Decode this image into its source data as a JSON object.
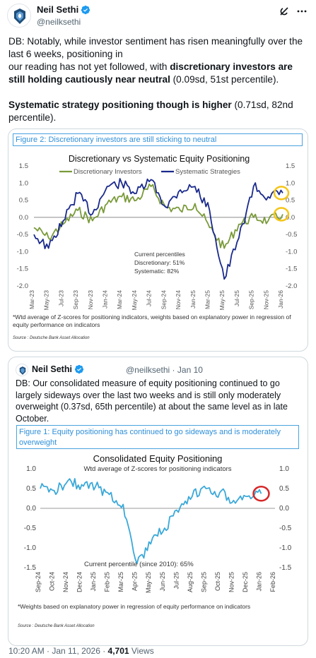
{
  "author": {
    "name": "Neil Sethi",
    "handle": "@neilksethi"
  },
  "tweet": {
    "line1": "DB: Notably, while investor sentiment has risen meaningfully over the last 6 weeks, positioning in",
    "line2_prefix": "our reading has not yet followed, with ",
    "line2_bold": "discretionary investors are still holding cautiously near neutral",
    "line2_suffix": " (0.09sd, 51st percentile).",
    "line3_bold": "Systematic strategy positioning though is higher",
    "line3_suffix": " (0.71sd, 82nd percentile)."
  },
  "colors": {
    "discretionary": "#7a9a3a",
    "systematic": "#1a2a8c",
    "consolidated": "#3aa8d8",
    "highlight_yellow": "#f5c518",
    "highlight_red": "#d62728",
    "caption_blue": "#2f8fd8"
  },
  "figure2": {
    "caption": "Figure 2: Discretionary investors are still sticking to neutral",
    "source": "Source : Deutsche Bank Asset Allocation",
    "footnote": "*Wtd average of Z-scores for positioning indicators, weights based on explanatory power in regression of equity performance on indicators",
    "annotation_title": "Current percentiles",
    "annotation_disc": "Discretionary: 51%",
    "annotation_sys": "Systematic: 82%"
  },
  "quote": {
    "author": "Neil Sethi",
    "handle": "@neilksethi",
    "date": "Jan 10",
    "text": "DB: Our consolidated measure of equity positioning continued to go largely sideways over the last two weeks and is still only moderately overweight (0.37sd, 65th percentile) at about the same level as in late October."
  },
  "figure1": {
    "caption": "Figure 1: Equity positioning has continued to go sideways and is moderately overweight",
    "source": "Source : Deutsche Bank Asset Allocation",
    "footnote": "*Weights based on explanatory power in regression of equity performance on indicators",
    "annotation": "Current percentile (since 2010): 65%"
  },
  "footer": {
    "time": "10:20 AM · Jan 11, 2026 · ",
    "views_count": "4,701",
    "views_label": " Views"
  },
  "icons": {
    "verified": "verified-badge-icon",
    "grok": "grok-icon",
    "more": "more-icon"
  },
  "chart_data": [
    {
      "type": "line",
      "title": "Discretionary  vs Systematic Equity Positioning",
      "x": [
        "Mar-23",
        "May-23",
        "Jul-23",
        "Sep-23",
        "Nov-23",
        "Jan-24",
        "Mar-24",
        "May-24",
        "Jul-24",
        "Sep-24",
        "Nov-24",
        "Jan-25",
        "Mar-25",
        "May-25",
        "Jul-25",
        "Sep-25",
        "Nov-25",
        "Jan-26"
      ],
      "ylim": [
        -2.0,
        1.5
      ],
      "yticks": [
        "1.5",
        "1.0",
        "0.5",
        "0.0",
        "-0.5",
        "-1.0",
        "-1.5",
        "-2.0"
      ],
      "legend": "top",
      "series": [
        {
          "name": "Discretionary Investors",
          "values": [
            -0.3,
            -0.6,
            -0.2,
            0.2,
            -0.1,
            0.4,
            0.6,
            0.5,
            0.9,
            0.3,
            0.2,
            0.4,
            -0.3,
            -0.9,
            -0.2,
            0.0,
            -0.1,
            0.09
          ]
        },
        {
          "name": "Systematic Strategies",
          "values": [
            -0.5,
            -0.9,
            -0.1,
            0.7,
            0.1,
            0.9,
            1.0,
            0.7,
            1.1,
            0.3,
            0.8,
            0.9,
            0.2,
            -1.8,
            -0.6,
            0.9,
            0.6,
            0.71
          ]
        }
      ]
    },
    {
      "type": "line",
      "title": "Consolidated Equity Positioning",
      "subtitle": "Wtd average of Z-scores for positioning indicators",
      "x": [
        "Sep-24",
        "Oct-24",
        "Nov-24",
        "Dec-24",
        "Jan-25",
        "Feb-25",
        "Mar-25",
        "Apr-25",
        "May-25",
        "Jun-25",
        "Jul-25",
        "Aug-25",
        "Sep-25",
        "Oct-25",
        "Nov-25",
        "Dec-25",
        "Jan-26",
        "Feb-26"
      ],
      "ylim": [
        -1.5,
        1.0
      ],
      "yticks": [
        "1.0",
        "0.5",
        "0.0",
        "-0.5",
        "-1.0",
        "-1.5"
      ],
      "series": [
        {
          "name": "",
          "values": [
            0.5,
            0.45,
            0.7,
            0.6,
            0.55,
            0.35,
            0.1,
            -1.4,
            -0.9,
            -0.5,
            -0.1,
            0.3,
            0.5,
            0.4,
            0.2,
            0.3,
            0.37,
            null
          ]
        }
      ]
    }
  ]
}
